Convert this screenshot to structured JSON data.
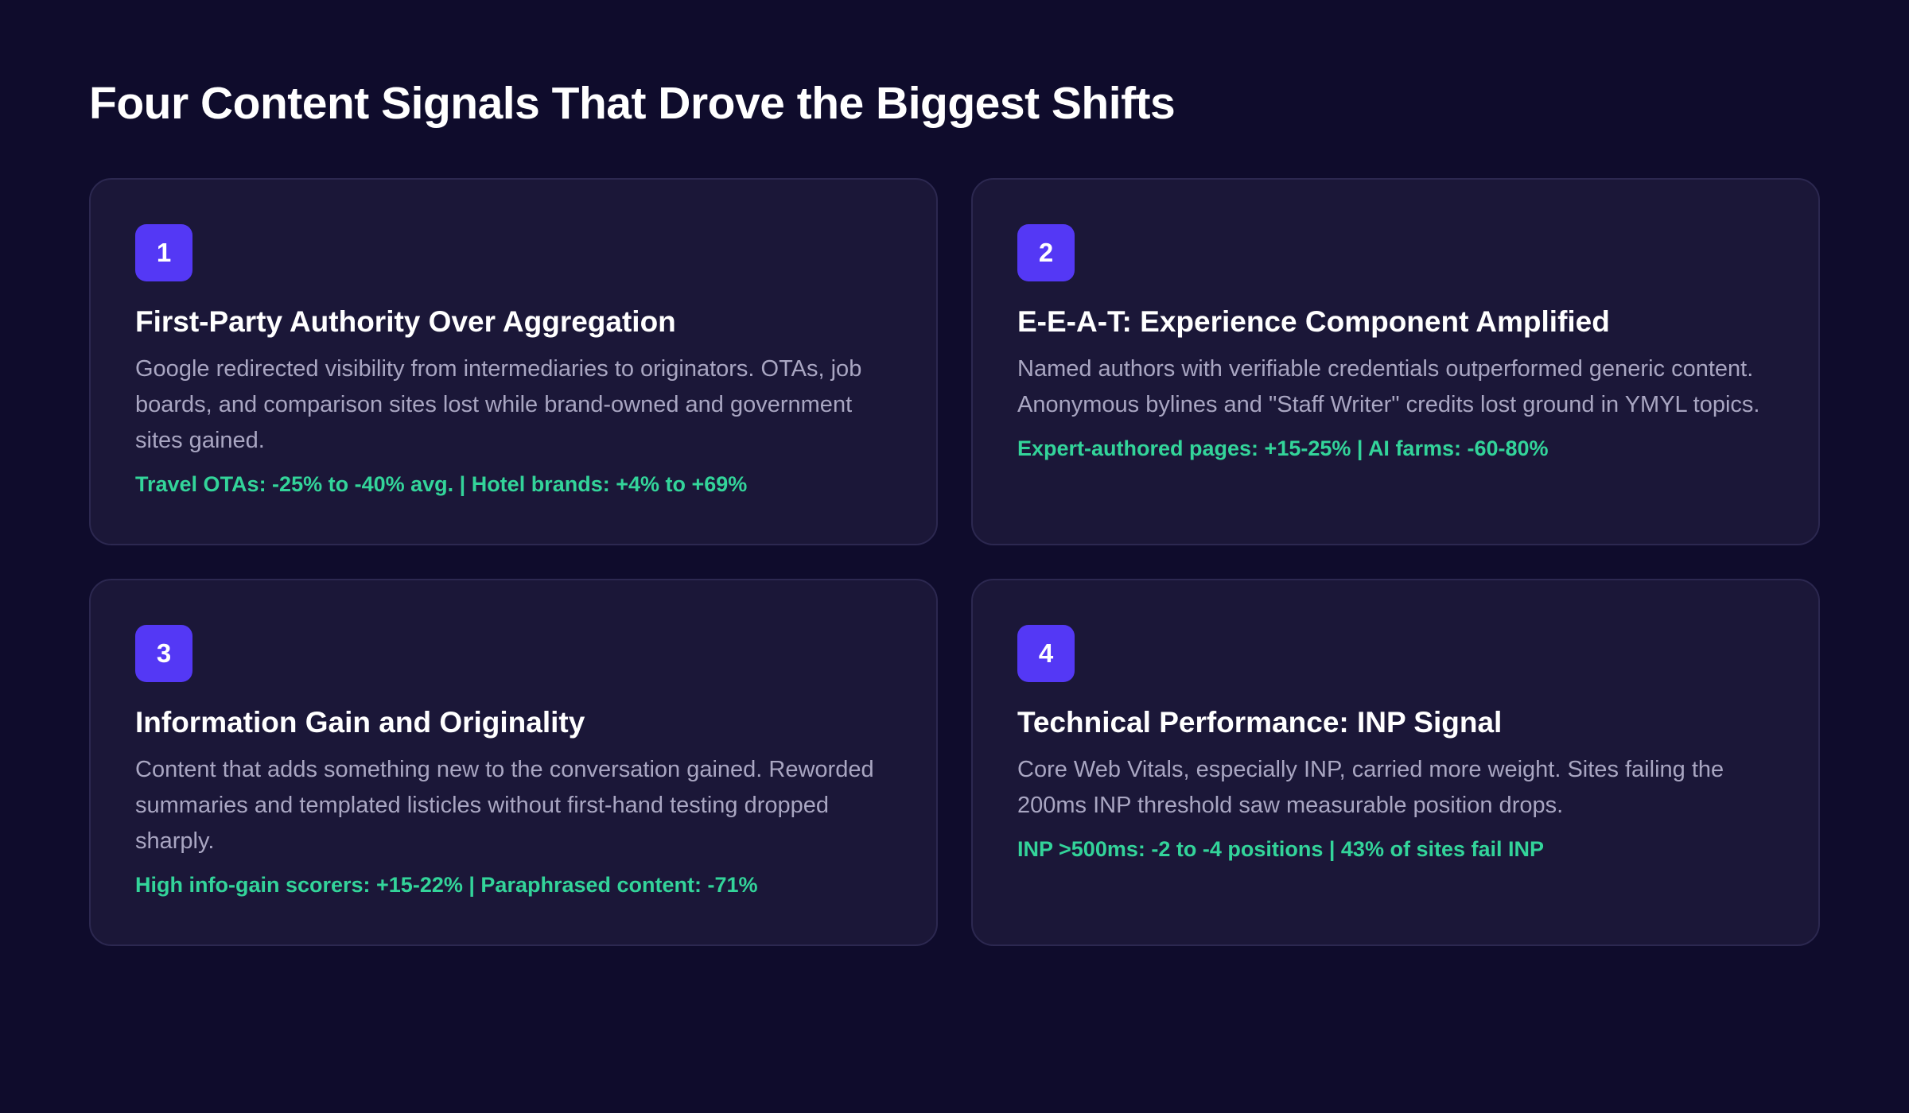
{
  "title": "Four Content Signals That Drove the Biggest Shifts",
  "colors": {
    "background": "#0f0c2c",
    "card": "#1b1738",
    "badge": "#5438f5",
    "stat": "#33d49a",
    "body_text": "#a9a6c2"
  },
  "cards": [
    {
      "number": "1",
      "title": "First-Party Authority Over Aggregation",
      "body": "Google redirected visibility from intermediaries to originators. OTAs, job boards, and comparison sites lost while brand-owned and government sites gained.",
      "stat": "Travel OTAs: -25% to -40% avg. | Hotel brands: +4% to +69%"
    },
    {
      "number": "2",
      "title": "E-E-A-T: Experience Component Amplified",
      "body": "Named authors with verifiable credentials outperformed generic content. Anonymous bylines and \"Staff Writer\" credits lost ground in YMYL topics.",
      "stat": "Expert-authored pages: +15-25% | AI farms: -60-80%"
    },
    {
      "number": "3",
      "title": "Information Gain and Originality",
      "body": "Content that adds something new to the conversation gained. Reworded summaries and templated listicles without first-hand testing dropped sharply.",
      "stat": "High info-gain scorers: +15-22% | Paraphrased content: -71%"
    },
    {
      "number": "4",
      "title": "Technical Performance: INP Signal",
      "body": "Core Web Vitals, especially INP, carried more weight. Sites failing the 200ms INP threshold saw measurable position drops.",
      "stat": "INP >500ms: -2 to -4 positions | 43% of sites fail INP"
    }
  ]
}
